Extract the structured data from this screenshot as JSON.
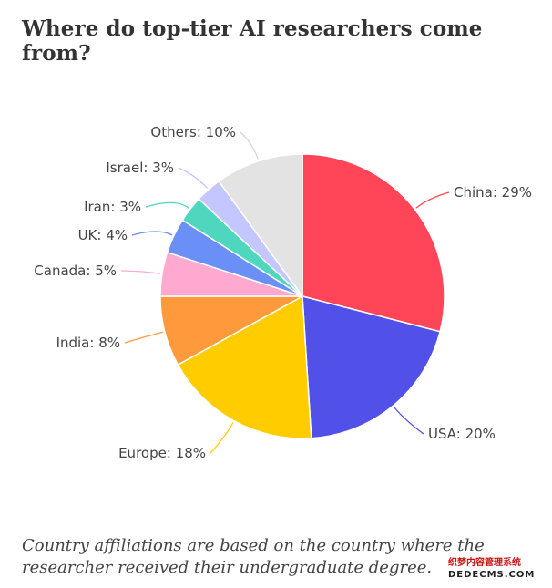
{
  "title": "Where do top-tier AI researchers come from?",
  "note": "Country affiliations are based on the country where the researcher received their undergraduate degree.",
  "watermark": {
    "line1": "织梦内容管理系统",
    "line2": "DEDECMS.COM"
  },
  "chart_data": {
    "type": "pie",
    "title": "Where do top-tier AI researchers come from?",
    "start": "12 o'clock, clockwise",
    "slices": [
      {
        "label": "China: 29%",
        "name": "China",
        "value": 29,
        "color": "#ff4557"
      },
      {
        "label": "USA: 20%",
        "name": "USA",
        "value": 20,
        "color": "#5151ea"
      },
      {
        "label": "Europe: 18%",
        "name": "Europe",
        "value": 18,
        "color": "#ffcc00"
      },
      {
        "label": "India: 8%",
        "name": "India",
        "value": 8,
        "color": "#ff9a3c"
      },
      {
        "label": "Canada: 5%",
        "name": "Canada",
        "value": 5,
        "color": "#ffa9d0"
      },
      {
        "label": "UK: 4%",
        "name": "UK",
        "value": 4,
        "color": "#6a8ff6"
      },
      {
        "label": "Iran: 3%",
        "name": "Iran",
        "value": 3,
        "color": "#4fd6bf"
      },
      {
        "label": "Israel: 3%",
        "name": "Israel",
        "value": 3,
        "color": "#c3c6ff"
      },
      {
        "label": "Others: 10%",
        "name": "Others",
        "value": 10,
        "color": "#e3e3e3"
      }
    ]
  }
}
